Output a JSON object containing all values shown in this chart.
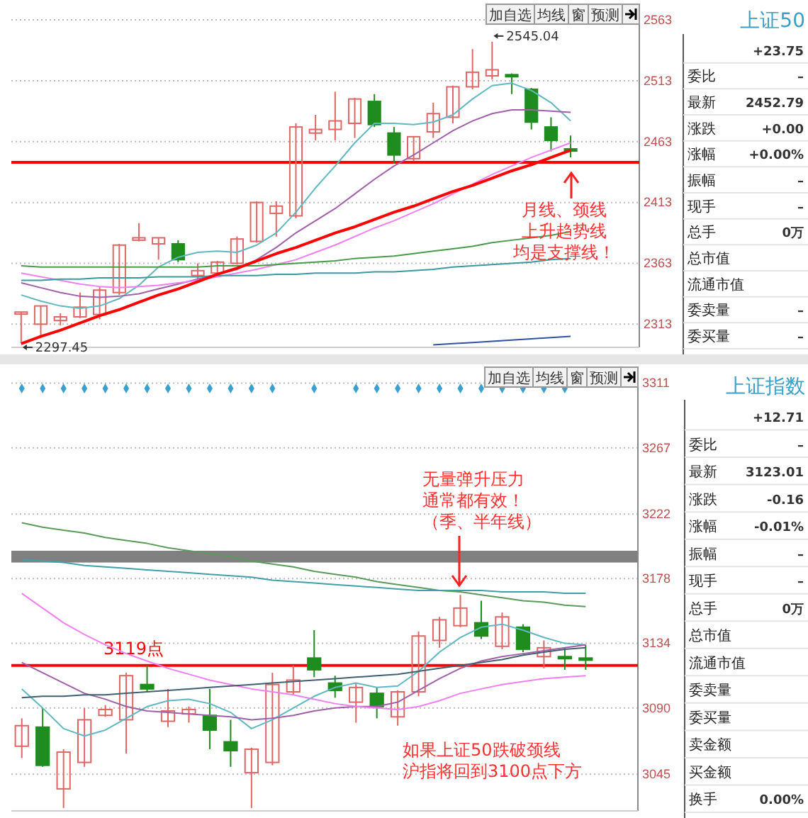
{
  "chart_data": [
    {
      "type": "candlestick",
      "categories": [
        null,
        null,
        null,
        null,
        null,
        null,
        null,
        null,
        null,
        null,
        null,
        null,
        null,
        null,
        null,
        null,
        null,
        null,
        null,
        null,
        null,
        null,
        null,
        null,
        null,
        null,
        null,
        null,
        null,
        null,
        null,
        null
      ],
      "ohlc": [
        [
          2322,
          2323,
          2297.45,
          2323
        ],
        [
          2313,
          2328,
          2302,
          2328
        ],
        [
          2316,
          2322,
          2312,
          2319
        ],
        [
          2319,
          2339,
          2318,
          2327
        ],
        [
          2321,
          2344,
          2317,
          2341
        ],
        [
          2339,
          2379,
          2337,
          2378
        ],
        [
          2382,
          2396,
          2381,
          2384
        ],
        [
          2379,
          2384,
          2366,
          2384
        ],
        [
          2379,
          2382,
          2364,
          2366
        ],
        [
          2353,
          2363,
          2350,
          2357
        ],
        [
          2355,
          2365,
          2353,
          2364
        ],
        [
          2363,
          2385,
          2362,
          2383
        ],
        [
          2381,
          2414,
          2380,
          2413
        ],
        [
          2404,
          2414,
          2385,
          2410
        ],
        [
          2402,
          2478,
          2400,
          2475
        ],
        [
          2470,
          2485,
          2464,
          2473
        ],
        [
          2473,
          2504,
          2464,
          2480
        ],
        [
          2478,
          2499,
          2466,
          2498
        ],
        [
          2496,
          2502,
          2475,
          2477
        ],
        [
          2470,
          2475,
          2445,
          2452
        ],
        [
          2449,
          2467,
          2447,
          2467
        ],
        [
          2471,
          2495,
          2466,
          2486
        ],
        [
          2483,
          2509,
          2478,
          2508
        ],
        [
          2508,
          2539,
          2506,
          2520
        ],
        [
          2517,
          2545.04,
          2514,
          2522
        ],
        [
          2518,
          2519,
          2502,
          2517
        ],
        [
          2506,
          2507,
          2473,
          2479
        ],
        [
          2475,
          2483,
          2455,
          2464
        ],
        [
          2457,
          2468,
          2450,
          2456
        ],
        null,
        null,
        null
      ],
      "colors": [
        "#e06666",
        "#e06666",
        "#e06666",
        "#e06666",
        "#e06666",
        "#e06666",
        "#e06666",
        "#e06666",
        "#1e8c1e",
        "#e06666",
        "#e06666",
        "#e06666",
        "#e06666",
        "#e06666",
        "#e06666",
        "#e06666",
        "#e06666",
        "#e06666",
        "#1e8c1e",
        "#1e8c1e",
        "#e06666",
        "#e06666",
        "#e06666",
        "#e06666",
        "#e06666",
        "#1e8c1e",
        "#1e8c1e",
        "#1e8c1e",
        "#1e8c1e",
        null,
        null,
        null
      ],
      "series": [
        {
          "type": "line",
          "color": "#5fb8c0",
          "values": [
            2337,
            2332,
            2328,
            2326,
            2328,
            2334,
            2345,
            2360,
            2368,
            2372,
            2373,
            2372,
            2378,
            2388,
            2405,
            2425,
            2443,
            2462,
            2478,
            2478,
            2477,
            2479,
            2485,
            2498,
            2509,
            2511,
            2505,
            2495,
            2480,
            null,
            null,
            null
          ]
        },
        {
          "type": "line",
          "color": "#a060a8",
          "values": [
            2347,
            2343,
            2339,
            2336,
            2335,
            2336,
            2338,
            2342,
            2346,
            2350,
            2354,
            2358,
            2366,
            2376,
            2388,
            2398,
            2408,
            2420,
            2432,
            2443,
            2452,
            2462,
            2472,
            2480,
            2486,
            2489,
            2489,
            2488,
            2487,
            null,
            null,
            null
          ]
        },
        {
          "type": "line",
          "color": "#f080f0",
          "values": [
            2355,
            2352,
            2349,
            2346,
            2344,
            2343,
            2344,
            2345,
            2347,
            2349,
            2352,
            2355,
            2358,
            2362,
            2366,
            2372,
            2378,
            2385,
            2392,
            2398,
            2405,
            2412,
            2420,
            2428,
            2436,
            2443,
            2450,
            2456,
            2462,
            null,
            null,
            null
          ]
        },
        {
          "type": "line",
          "color": "#4a9a4a",
          "values": [
            2361,
            2360,
            2360,
            2360,
            2360,
            2360,
            2360,
            2360,
            2360,
            2360,
            2361,
            2361,
            2361,
            2362,
            2363,
            2364,
            2365,
            2367,
            2368,
            2369,
            2371,
            2373,
            2375,
            2377,
            2380,
            2382,
            2384,
            2386,
            2389,
            null,
            null,
            null
          ]
        },
        {
          "type": "line",
          "color": "#3a9aa0",
          "values": [
            2349,
            2349,
            2350,
            2350,
            2351,
            2351,
            2351,
            2352,
            2352,
            2352,
            2353,
            2353,
            2353,
            2354,
            2354,
            2355,
            2355,
            2355,
            2356,
            2356,
            2357,
            2358,
            2360,
            2361,
            2362,
            2363,
            2364,
            2366,
            2367,
            null,
            null,
            null
          ]
        },
        {
          "type": "line",
          "color": "#3050a0",
          "values": [
            null,
            null,
            null,
            null,
            null,
            null,
            null,
            null,
            null,
            null,
            null,
            null,
            null,
            null,
            null,
            null,
            null,
            null,
            null,
            null,
            null,
            2296,
            2297,
            2298,
            2299,
            2300,
            2301,
            2302,
            2303,
            null,
            null,
            null
          ]
        },
        {
          "type": "line",
          "color": "#ff0000",
          "values": [
            2297,
            2303,
            2308,
            2314,
            2320,
            2325,
            2331,
            2337,
            2342,
            2348,
            2354,
            2359,
            2365,
            2371,
            2376,
            2382,
            2388,
            2393,
            2399,
            2405,
            2410,
            2416,
            2422,
            2427,
            2433,
            2439,
            2444,
            2450,
            2456,
            null,
            null,
            null
          ]
        }
      ],
      "ref_lines": [
        {
          "axis": "y",
          "value": 2446,
          "color": "#ff0000"
        }
      ],
      "ylim": [
        2294,
        2570
      ],
      "yticks": [
        2563,
        2513,
        2463,
        2413,
        2363,
        2313
      ],
      "grid": "y",
      "annotations": [
        "2297.45",
        "2545.04",
        "月线、颈线",
        "上升趋势线",
        "均是支撑线！",
        "加自选",
        "均线",
        "窗",
        "预测"
      ]
    },
    {
      "type": "other",
      "title": "上证50",
      "annotations": [
        "\t+23.75",
        "委比\t–",
        "最新\t2452.79",
        "涨跌\t+0.00",
        "涨幅\t+0.00%",
        "振幅\t–",
        "现手\t–",
        "总手\t0万",
        "总市值\t",
        "流通市值\t",
        "委卖量\t–",
        "委买量\t–"
      ]
    },
    {
      "type": "candlestick",
      "categories": [
        null,
        null,
        null,
        null,
        null,
        null,
        null,
        null,
        null,
        null,
        null,
        null,
        null,
        null,
        null,
        null,
        null,
        null,
        null,
        null,
        null,
        null,
        null,
        null,
        null,
        null,
        null,
        null,
        null,
        null
      ],
      "ohlc": [
        [
          3064,
          3083,
          3056,
          3078
        ],
        [
          3077,
          3090,
          3050,
          3051
        ],
        [
          3035,
          3062,
          3022,
          3060
        ],
        [
          3053,
          3090,
          3050,
          3082
        ],
        [
          3085,
          3092,
          3084,
          3089
        ],
        [
          3082,
          3114,
          3059,
          3112
        ],
        [
          3106,
          3119,
          3101,
          3103
        ],
        [
          3081,
          3103,
          3077,
          3088
        ],
        [
          3086,
          3091,
          3080,
          3089
        ],
        [
          3085,
          3103,
          3062,
          3075
        ],
        [
          3067,
          3082,
          3050,
          3061
        ],
        [
          3046,
          3063,
          3022,
          3062
        ],
        [
          3053,
          3114,
          3051,
          3106
        ],
        [
          3101,
          3119,
          3099,
          3109
        ],
        [
          3124,
          3143,
          3111,
          3116
        ],
        [
          3107,
          3112,
          3097,
          3102
        ],
        [
          3094,
          3107,
          3080,
          3104
        ],
        [
          3100,
          3104,
          3083,
          3091
        ],
        [
          3084,
          3102,
          3078,
          3101
        ],
        [
          3101,
          3142,
          3098,
          3139
        ],
        [
          3136,
          3152,
          3131,
          3150
        ],
        [
          3146,
          3167,
          3145,
          3158
        ],
        [
          3148,
          3163,
          3137,
          3139
        ],
        [
          3132,
          3155,
          3130,
          3152
        ],
        [
          3145,
          3147,
          3128,
          3130
        ],
        [
          3125,
          3136,
          3117,
          3131
        ],
        [
          3125,
          3131,
          3116,
          3124
        ],
        [
          3124,
          3133,
          3116,
          3123.01
        ],
        null,
        null
      ],
      "colors": [
        "#e06666",
        "#1e8c1e",
        "#e06666",
        "#e06666",
        "#e06666",
        "#e06666",
        "#1e8c1e",
        "#e06666",
        "#e06666",
        "#1e8c1e",
        "#1e8c1e",
        "#e06666",
        "#e06666",
        "#e06666",
        "#1e8c1e",
        "#1e8c1e",
        "#e06666",
        "#1e8c1e",
        "#e06666",
        "#e06666",
        "#e06666",
        "#e06666",
        "#1e8c1e",
        "#e06666",
        "#1e8c1e",
        "#e06666",
        "#1e8c1e",
        "#1e8c1e",
        null,
        null
      ],
      "series": [
        {
          "type": "line",
          "color": "#5fb8c0",
          "values": [
            3103,
            3090,
            3076,
            3071,
            3075,
            3083,
            3091,
            3095,
            3096,
            3093,
            3087,
            3076,
            3082,
            3090,
            3098,
            3104,
            3107,
            3104,
            3105,
            3115,
            3128,
            3138,
            3145,
            3147,
            3143,
            3138,
            3134,
            3133,
            null,
            null
          ]
        },
        {
          "type": "line",
          "color": "#a060a8",
          "values": [
            3121,
            3114,
            3107,
            3100,
            3096,
            3091,
            3088,
            3087,
            3086,
            3085,
            3084,
            3082,
            3083,
            3085,
            3088,
            3090,
            3091,
            3091,
            3094,
            3102,
            3110,
            3117,
            3122,
            3125,
            3127,
            3129,
            3131,
            3133,
            null,
            null
          ]
        },
        {
          "type": "line",
          "color": "#f080f0",
          "values": [
            3168,
            3158,
            3148,
            3140,
            3133,
            3127,
            3122,
            3117,
            3113,
            3109,
            3106,
            3103,
            3101,
            3099,
            3096,
            3093,
            3091,
            3090,
            3089,
            3091,
            3095,
            3100,
            3103,
            3106,
            3108,
            3110,
            3111,
            3112,
            null,
            null
          ]
        },
        {
          "type": "line",
          "color": "#406070",
          "values": [
            3097,
            3098,
            3098,
            3099,
            3099,
            3100,
            3101,
            3102,
            3103,
            3104,
            3105,
            3106,
            3107,
            3108,
            3109,
            3110,
            3111,
            3112,
            3113,
            3115,
            3117,
            3119,
            3121,
            3123,
            3126,
            3128,
            3130,
            3131,
            null,
            null
          ]
        },
        {
          "type": "line",
          "color": "#5a9a5a",
          "values": [
            3216,
            3213,
            3211,
            3209,
            3206,
            3204,
            3202,
            3199,
            3197,
            3195,
            3193,
            3190,
            3188,
            3186,
            3183,
            3181,
            3179,
            3176,
            3174,
            3172,
            3170,
            3169,
            3167,
            3165,
            3163,
            3162,
            3160,
            3159,
            null,
            null
          ]
        },
        {
          "type": "line",
          "color": "#40a0a8",
          "values": [
            3191,
            3190,
            3189,
            3187,
            3186,
            3185,
            3184,
            3183,
            3182,
            3181,
            3180,
            3179,
            3177,
            3176,
            3175,
            3174,
            3173,
            3172,
            3171,
            3170,
            3170,
            3170,
            3170,
            3169,
            3169,
            3169,
            3168,
            3168,
            null,
            null
          ]
        }
      ],
      "ref_lines": [
        {
          "axis": "y",
          "value": 3119,
          "label": "3119点",
          "color": "#ff0000"
        }
      ],
      "bands": [
        {
          "axis": "y",
          "from": 3189,
          "to": 3197,
          "color": "#808080"
        }
      ],
      "ylim": [
        3020,
        3319
      ],
      "yticks": [
        3311,
        3267,
        3222,
        3178,
        3134,
        3090,
        3045
      ],
      "grid": "y",
      "annotations": [
        "无量弹升压力",
        "通常都有效！",
        "（季、半年线）",
        "如果上证50跌破颈线",
        "沪指将回到3100点下方",
        "加自选",
        "均线",
        "窗",
        "预测"
      ]
    },
    {
      "type": "other",
      "title": "上证指数",
      "annotations": [
        "\t+12.71",
        "委比\t–",
        "最新\t3123.01",
        "涨跌\t-0.16",
        "涨幅\t-0.01%",
        "振幅\t–",
        "现手\t–",
        "总手\t0万",
        "总市值\t",
        "流通市值\t",
        "委卖量\t",
        "委买量\t",
        "卖金额\t",
        "买金额\t",
        "换手\t0.00%"
      ]
    }
  ]
}
